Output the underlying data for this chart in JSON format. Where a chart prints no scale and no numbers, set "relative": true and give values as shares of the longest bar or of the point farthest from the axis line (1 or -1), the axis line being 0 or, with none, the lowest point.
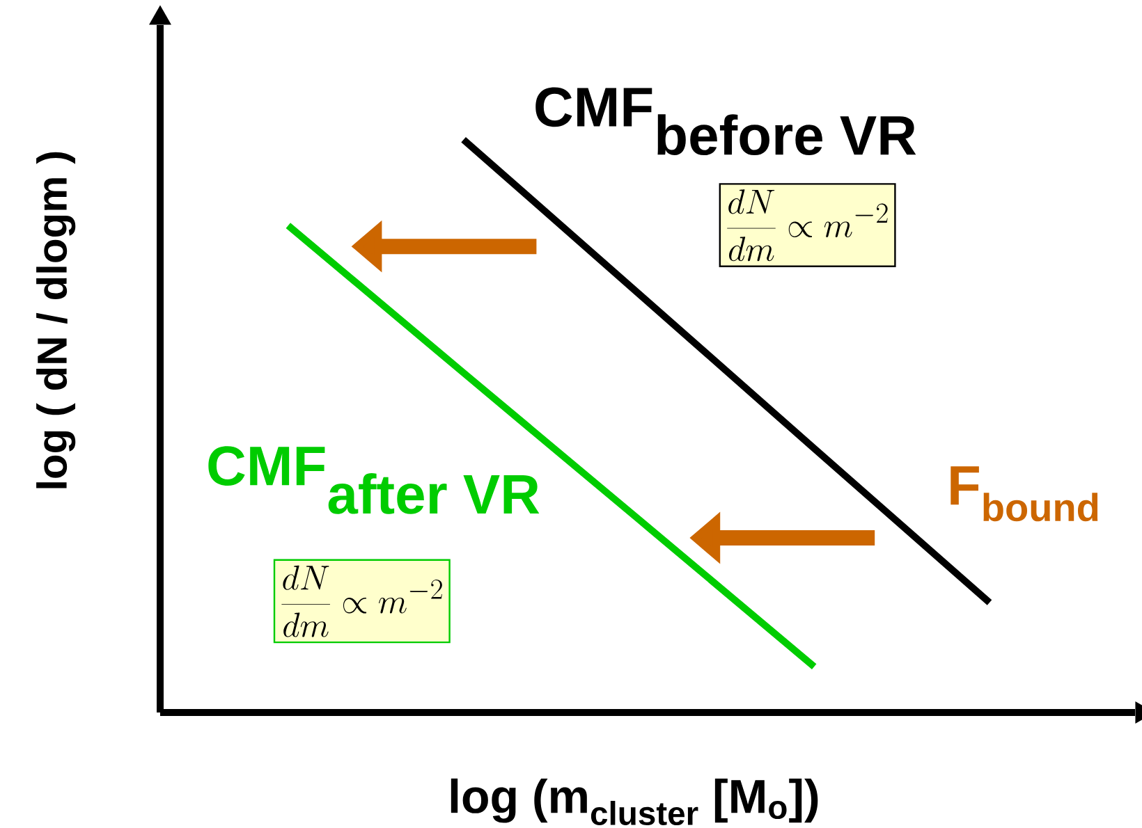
{
  "chart_data": {
    "type": "line",
    "relative": true,
    "xlabel": "log (m$_{cluster}$ [M$_{o}$])",
    "ylabel": "log ( dN / dlogm )",
    "categories": [
      null,
      null,
      null,
      null,
      null
    ],
    "series": [
      {
        "name": "\\textbf{CMF}_{\\textbf{before VR}}",
        "color": "#000000",
        "values": [
          null,
          1.0,
          0.731,
          0.461,
          0.192
        ]
      },
      {
        "name": "\\textbf{CMF}_{\\textbf{after VR}}",
        "color": "#00cc00",
        "values": [
          0.85,
          0.593,
          0.337,
          0.08,
          null
        ]
      }
    ],
    "annotations": [
      "\\frac{dN}{dm}\\propto m^{-2}",
      "\\frac{dN}{dm}\\propto m^{-2}",
      "F$_{bound}$"
    ]
  }
}
